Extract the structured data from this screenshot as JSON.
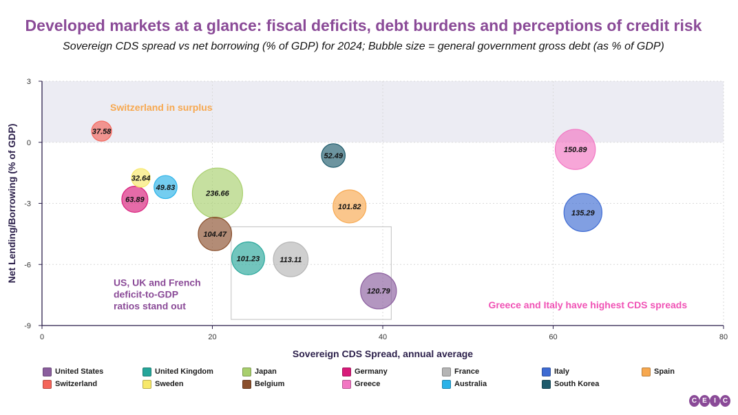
{
  "title": "Developed markets at a glance: fiscal deficits, debt burdens and perceptions of credit risk",
  "subtitle": "Sovereign CDS spread vs net borrowing (% of GDP) for 2024; Bubble size = general government gross debt (as % of GDP)",
  "chart_data": {
    "type": "scatter",
    "subtype": "bubble",
    "xlabel": "Sovereign CDS Spread, annual average",
    "ylabel": "Net Lending/Borrowing (% of GDP)",
    "xlim": [
      0,
      80
    ],
    "ylim": [
      -9,
      3
    ],
    "xticks": [
      0,
      20,
      40,
      60,
      80
    ],
    "yticks": [
      3,
      0,
      -3,
      -6,
      -9
    ],
    "grid": true,
    "shaded_region": {
      "y_from": 0,
      "y_to": 3,
      "color": "#ececf3"
    },
    "highlight_box": {
      "x_from": 22.2,
      "x_to": 41,
      "y_from": -8.7,
      "y_to": -4.15
    },
    "series": [
      {
        "name": "United States",
        "color": "#8b5e9e",
        "x": 39.5,
        "y": -7.3,
        "size": 120.79,
        "label": "120.79"
      },
      {
        "name": "United Kingdom",
        "color": "#26a69a",
        "x": 24.2,
        "y": -5.7,
        "size": 101.23,
        "label": "101.23"
      },
      {
        "name": "Japan",
        "color": "#a8cf6d",
        "x": 20.6,
        "y": -2.5,
        "size": 236.66,
        "label": "236.66"
      },
      {
        "name": "Germany",
        "color": "#d81b7a",
        "x": 10.9,
        "y": -2.8,
        "size": 63.89,
        "label": "63.89"
      },
      {
        "name": "France",
        "color": "#b5b5b5",
        "x": 29.2,
        "y": -5.75,
        "size": 113.11,
        "label": "113.11"
      },
      {
        "name": "Italy",
        "color": "#3e6bd3",
        "x": 63.5,
        "y": -3.45,
        "size": 135.29,
        "label": "135.29"
      },
      {
        "name": "Spain",
        "color": "#f7a84f",
        "x": 36.1,
        "y": -3.15,
        "size": 101.82,
        "label": "101.82"
      },
      {
        "name": "Switzerland",
        "color": "#f4655a",
        "x": 7.0,
        "y": 0.55,
        "size": 37.58,
        "label": "37.58"
      },
      {
        "name": "Sweden",
        "color": "#f7e86a",
        "x": 11.6,
        "y": -1.75,
        "size": 32.64,
        "label": "32.64"
      },
      {
        "name": "Belgium",
        "color": "#8a4f2c",
        "x": 20.3,
        "y": -4.5,
        "size": 104.47,
        "label": "104.47"
      },
      {
        "name": "Greece",
        "color": "#f277c3",
        "x": 62.6,
        "y": -0.35,
        "size": 150.89,
        "label": "150.89"
      },
      {
        "name": "Australia",
        "color": "#2ab2e8",
        "x": 14.5,
        "y": -2.2,
        "size": 49.83,
        "label": "49.83"
      },
      {
        "name": "South Korea",
        "color": "#1d5a6b",
        "x": 34.2,
        "y": -0.65,
        "size": 52.49,
        "label": "52.49"
      }
    ],
    "annotations": [
      {
        "text": "Switzerland in surplus",
        "color": "#f7a84f",
        "x": 8.0,
        "y": 1.55
      },
      {
        "text_lines": [
          "US, UK and French",
          "deficit-to-GDP",
          "ratios stand out"
        ],
        "color": "#8a4a97",
        "x": 8.4,
        "y": -7.05
      },
      {
        "text": "Greece and Italy have highest CDS spreads",
        "color": "#f052b5",
        "x": 52.4,
        "y": -8.15
      }
    ]
  },
  "logo": {
    "letters": [
      "C",
      "E",
      "I",
      "C"
    ]
  }
}
